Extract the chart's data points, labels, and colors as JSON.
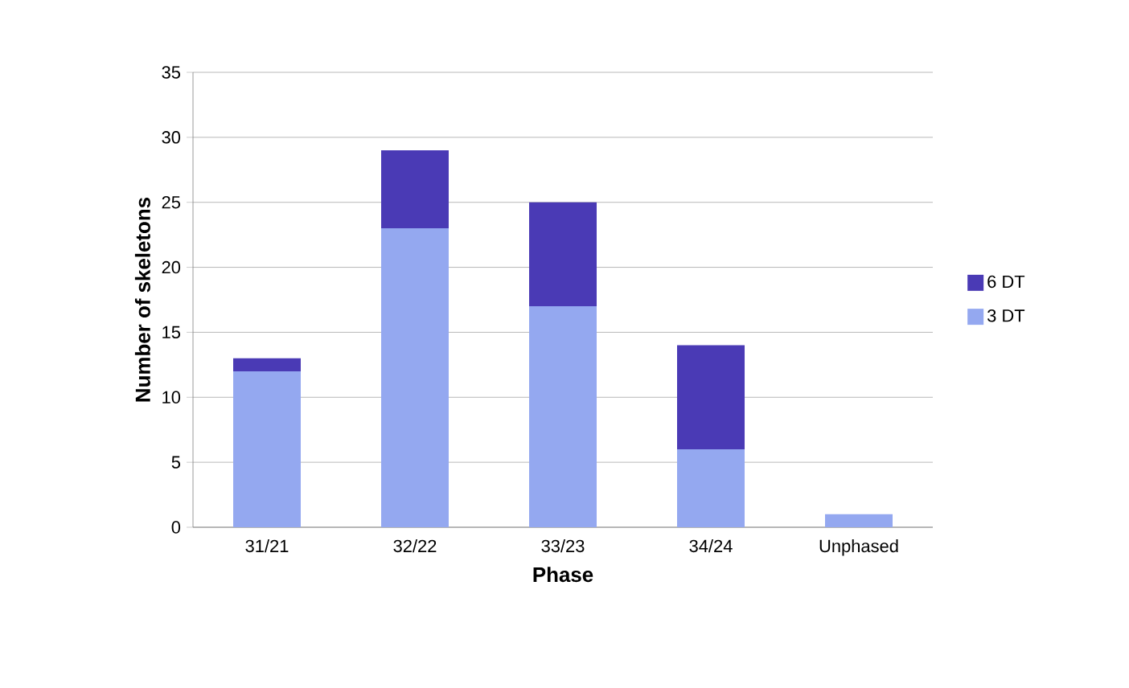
{
  "chart_data": {
    "type": "bar",
    "stacked": true,
    "xlabel": "Phase",
    "ylabel": "Number of skeletons",
    "categories": [
      "31/21",
      "32/22",
      "33/23",
      "34/24",
      "Unphased"
    ],
    "series": [
      {
        "name": "3 DT",
        "color": "#94a8f0",
        "values": [
          12,
          23,
          17,
          6,
          1
        ]
      },
      {
        "name": "6 DT",
        "color": "#4a3ab5",
        "values": [
          1,
          6,
          8,
          8,
          0
        ]
      }
    ],
    "ylim": [
      0,
      35
    ],
    "yticks": [
      0,
      5,
      10,
      15,
      20,
      25,
      30,
      35
    ],
    "grid": "y",
    "legend": "right"
  }
}
